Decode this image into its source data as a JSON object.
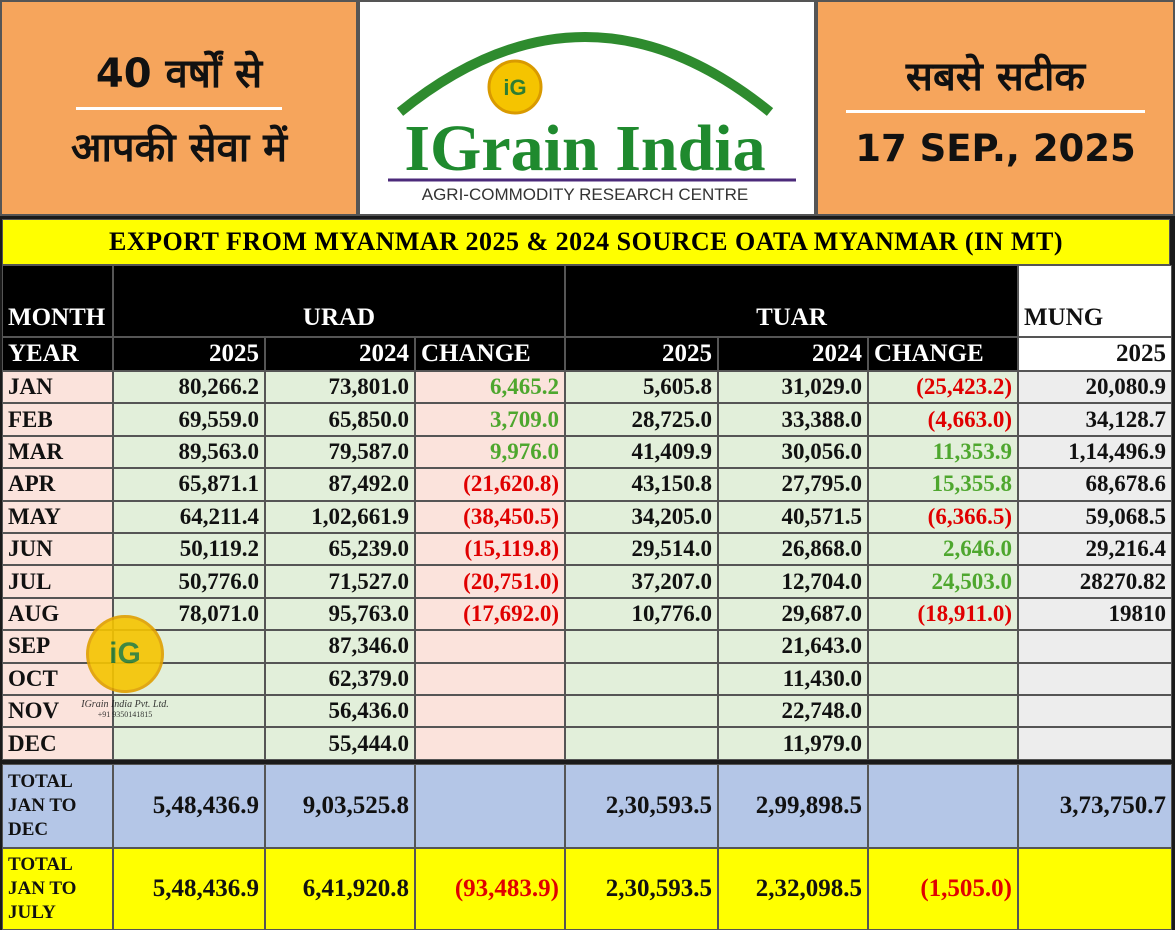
{
  "header": {
    "left": {
      "line1": "40 वर्षों से",
      "line2": "आपकी सेवा में"
    },
    "logo": {
      "badge": "iG",
      "name": "IGrain India",
      "tagline": "AGRI-COMMODITY RESEARCH CENTRE"
    },
    "right": {
      "line1": "सबसे सटीक",
      "date": "17 SEP., 2025"
    }
  },
  "table": {
    "title": "EXPORT FROM MYANMAR 2025 & 2024 SOURCE OATA MYANMAR (IN MT)",
    "head1": [
      "MONTH",
      "URAD",
      "TUAR",
      "MUNG"
    ],
    "head2": [
      "YEAR",
      "2025",
      "2024",
      "CHANGE",
      "2025",
      "2024",
      "CHANGE",
      "2025"
    ],
    "rows": [
      [
        "JAN",
        "80,266.2",
        "73,801.0",
        "6,465.2",
        "5,605.8",
        "31,029.0",
        "(25,423.2)",
        "20,080.9"
      ],
      [
        "FEB",
        "69,559.0",
        "65,850.0",
        "3,709.0",
        "28,725.0",
        "33,388.0",
        "(4,663.0)",
        "34,128.7"
      ],
      [
        "MAR",
        "89,563.0",
        "79,587.0",
        "9,976.0",
        "41,409.9",
        "30,056.0",
        "11,353.9",
        "1,14,496.9"
      ],
      [
        "APR",
        "65,871.1",
        "87,492.0",
        "(21,620.8)",
        "43,150.8",
        "27,795.0",
        "15,355.8",
        "68,678.6"
      ],
      [
        "MAY",
        "64,211.4",
        "1,02,661.9",
        "(38,450.5)",
        "34,205.0",
        "40,571.5",
        "(6,366.5)",
        "59,068.5"
      ],
      [
        "JUN",
        "50,119.2",
        "65,239.0",
        "(15,119.8)",
        "29,514.0",
        "26,868.0",
        "2,646.0",
        "29,216.4"
      ],
      [
        "JUL",
        "50,776.0",
        "71,527.0",
        "(20,751.0)",
        "37,207.0",
        "12,704.0",
        "24,503.0",
        "28270.82"
      ],
      [
        "AUG",
        "78,071.0",
        "95,763.0",
        "(17,692.0)",
        "10,776.0",
        "29,687.0",
        "(18,911.0)",
        "19810"
      ],
      [
        "SEP",
        null,
        "87,346.0",
        null,
        null,
        "21,643.0",
        null,
        null
      ],
      [
        "OCT",
        null,
        "62,379.0",
        null,
        null,
        "11,430.0",
        null,
        null
      ],
      [
        "NOV",
        null,
        "56,436.0",
        null,
        null,
        "22,748.0",
        null,
        null
      ],
      [
        "DEC",
        null,
        "55,444.0",
        null,
        null,
        "11,979.0",
        null,
        null
      ]
    ],
    "totals": [
      {
        "label": [
          "TOTAL",
          "JAN TO",
          "DEC"
        ],
        "cells": [
          "5,48,436.9",
          "9,03,525.8",
          null,
          "2,30,593.5",
          "2,99,898.5",
          null,
          "3,73,750.7"
        ]
      },
      {
        "label": [
          "TOTAL",
          "JAN TO",
          "JULY"
        ],
        "cells": [
          "5,48,436.9",
          "6,41,920.8",
          "(93,483.9)",
          "2,30,593.5",
          "2,32,098.5",
          "(1,505.0)",
          null
        ]
      }
    ]
  },
  "watermark": {
    "badge": "iG",
    "company": "IGrain India Pvt. Ltd.",
    "phone": "+91 9350141815"
  }
}
